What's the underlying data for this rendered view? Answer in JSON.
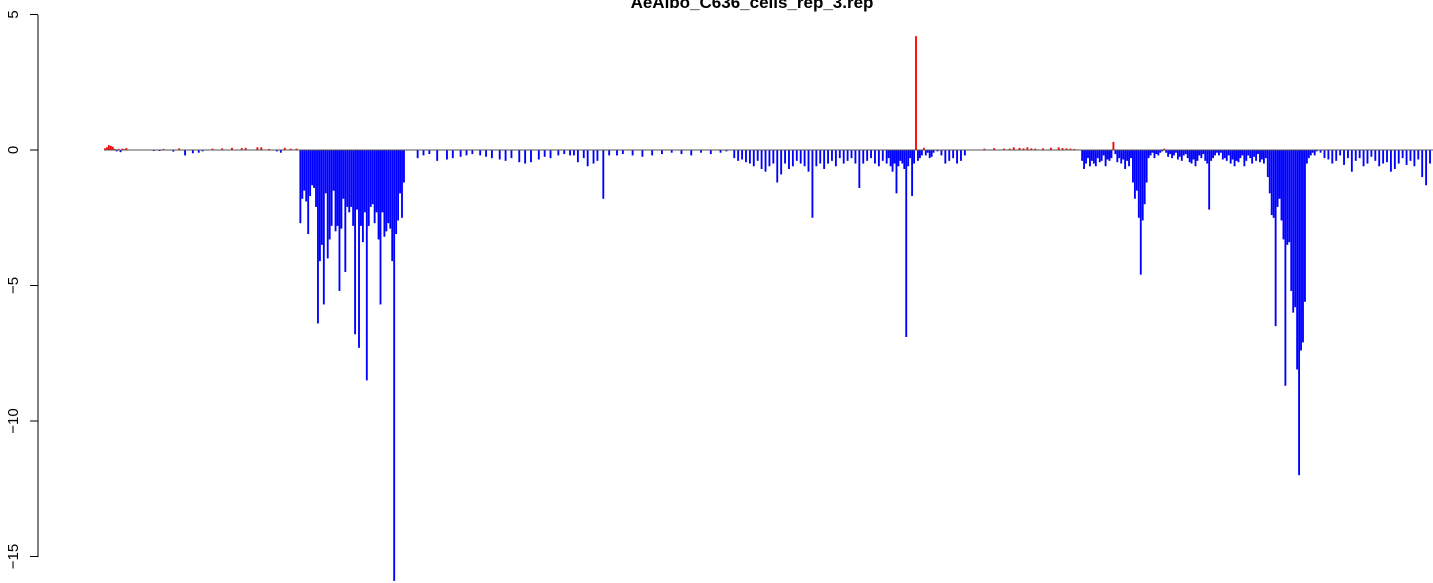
{
  "chart_data": {
    "type": "bar",
    "title": "AeAlbo_C636_cells_rep_3.rep",
    "xlabel": "",
    "ylabel": "",
    "ylim": [
      -16,
      5
    ],
    "yticks": [
      5,
      0,
      -5,
      -10,
      -15
    ],
    "ytick_labels": [
      "5",
      "0",
      "−5",
      "−10",
      "−15"
    ],
    "positive_color": "#ff0000",
    "negative_color": "#0000ff",
    "baseline_color": "#555555",
    "n_bins": 680,
    "bins": [
      [
        0,
        0.06
      ],
      [
        1,
        0.1
      ],
      [
        2,
        0.18
      ],
      [
        3,
        0.15
      ],
      [
        4,
        0.12
      ],
      [
        5,
        0.04
      ],
      [
        6,
        -0.05
      ],
      [
        7,
        0.04
      ],
      [
        8,
        -0.08
      ],
      [
        9,
        0.05
      ],
      [
        10,
        0.03
      ],
      [
        11,
        0.07
      ],
      [
        25,
        -0.02
      ],
      [
        28,
        -0.03
      ],
      [
        30,
        0.04
      ],
      [
        35,
        -0.06
      ],
      [
        38,
        0.06
      ],
      [
        41,
        -0.2
      ],
      [
        45,
        -0.12
      ],
      [
        48,
        -0.1
      ],
      [
        50,
        -0.05
      ],
      [
        55,
        0.05
      ],
      [
        60,
        0.06
      ],
      [
        65,
        0.08
      ],
      [
        70,
        0.07
      ],
      [
        72,
        0.08
      ],
      [
        78,
        0.1
      ],
      [
        80,
        0.1
      ],
      [
        84,
        0.04
      ],
      [
        88,
        -0.05
      ],
      [
        90,
        -0.1
      ],
      [
        92,
        0.08
      ],
      [
        95,
        0.05
      ],
      [
        98,
        0.05
      ],
      [
        100,
        -2.7
      ],
      [
        101,
        -1.8
      ],
      [
        102,
        -1.5
      ],
      [
        103,
        -1.9
      ],
      [
        104,
        -3.1
      ],
      [
        105,
        -1.7
      ],
      [
        106,
        -1.3
      ],
      [
        107,
        -1.4
      ],
      [
        108,
        -2.1
      ],
      [
        109,
        -6.4
      ],
      [
        110,
        -4.1
      ],
      [
        111,
        -3.5
      ],
      [
        112,
        -5.7
      ],
      [
        113,
        -1.6
      ],
      [
        114,
        -4.0
      ],
      [
        115,
        -3.3
      ],
      [
        116,
        -2.8
      ],
      [
        117,
        -1.5
      ],
      [
        118,
        -3.0
      ],
      [
        119,
        -2.8
      ],
      [
        120,
        -5.2
      ],
      [
        121,
        -2.9
      ],
      [
        122,
        -1.8
      ],
      [
        123,
        -4.5
      ],
      [
        124,
        -2.1
      ],
      [
        125,
        -2.3
      ],
      [
        126,
        -2.1
      ],
      [
        127,
        -2.8
      ],
      [
        128,
        -6.8
      ],
      [
        129,
        -2.2
      ],
      [
        130,
        -7.3
      ],
      [
        131,
        -2.8
      ],
      [
        132,
        -3.4
      ],
      [
        133,
        -2.3
      ],
      [
        134,
        -8.5
      ],
      [
        135,
        -2.8
      ],
      [
        136,
        -2.1
      ],
      [
        137,
        -2.0
      ],
      [
        138,
        -2.7
      ],
      [
        139,
        -2.3
      ],
      [
        140,
        -3.3
      ],
      [
        141,
        -5.7
      ],
      [
        142,
        -2.3
      ],
      [
        143,
        -3.2
      ],
      [
        144,
        -3.0
      ],
      [
        145,
        -2.7
      ],
      [
        146,
        -2.9
      ],
      [
        147,
        -4.1
      ],
      [
        148,
        -15.9
      ],
      [
        149,
        -3.1
      ],
      [
        150,
        -2.6
      ],
      [
        151,
        -1.6
      ],
      [
        152,
        -2.5
      ],
      [
        153,
        -1.2
      ],
      [
        160,
        -0.3
      ],
      [
        163,
        -0.2
      ],
      [
        166,
        -0.15
      ],
      [
        170,
        -0.4
      ],
      [
        175,
        -0.35
      ],
      [
        178,
        -0.3
      ],
      [
        182,
        -0.25
      ],
      [
        185,
        -0.2
      ],
      [
        188,
        -0.15
      ],
      [
        192,
        -0.2
      ],
      [
        195,
        -0.25
      ],
      [
        198,
        -0.3
      ],
      [
        202,
        -0.35
      ],
      [
        205,
        -0.4
      ],
      [
        208,
        -0.3
      ],
      [
        212,
        -0.45
      ],
      [
        215,
        -0.5
      ],
      [
        218,
        -0.45
      ],
      [
        222,
        -0.35
      ],
      [
        225,
        -0.25
      ],
      [
        228,
        -0.3
      ],
      [
        232,
        -0.2
      ],
      [
        235,
        -0.15
      ],
      [
        238,
        -0.2
      ],
      [
        240,
        -0.2
      ],
      [
        242,
        -0.45
      ],
      [
        245,
        -0.3
      ],
      [
        247,
        -0.6
      ],
      [
        250,
        -0.5
      ],
      [
        252,
        -0.4
      ],
      [
        255,
        -1.8
      ],
      [
        258,
        -0.2
      ],
      [
        262,
        -0.2
      ],
      [
        265,
        -0.15
      ],
      [
        270,
        -0.2
      ],
      [
        275,
        -0.25
      ],
      [
        280,
        -0.2
      ],
      [
        285,
        -0.15
      ],
      [
        290,
        -0.1
      ],
      [
        295,
        -0.15
      ],
      [
        300,
        -0.2
      ],
      [
        305,
        -0.1
      ],
      [
        310,
        -0.15
      ],
      [
        315,
        -0.1
      ],
      [
        318,
        -0.05
      ],
      [
        322,
        -0.3
      ],
      [
        324,
        -0.4
      ],
      [
        326,
        -0.35
      ],
      [
        328,
        -0.45
      ],
      [
        330,
        -0.5
      ],
      [
        332,
        -0.6
      ],
      [
        334,
        -0.4
      ],
      [
        336,
        -0.7
      ],
      [
        338,
        -0.8
      ],
      [
        340,
        -0.6
      ],
      [
        342,
        -0.5
      ],
      [
        344,
        -1.2
      ],
      [
        346,
        -0.9
      ],
      [
        348,
        -0.5
      ],
      [
        350,
        -0.7
      ],
      [
        352,
        -0.6
      ],
      [
        354,
        -0.4
      ],
      [
        356,
        -0.5
      ],
      [
        358,
        -0.6
      ],
      [
        360,
        -0.8
      ],
      [
        362,
        -2.5
      ],
      [
        364,
        -0.6
      ],
      [
        366,
        -0.5
      ],
      [
        368,
        -0.7
      ],
      [
        370,
        -0.5
      ],
      [
        372,
        -0.4
      ],
      [
        374,
        -0.6
      ],
      [
        376,
        -0.3
      ],
      [
        378,
        -0.5
      ],
      [
        380,
        -0.4
      ],
      [
        382,
        -0.3
      ],
      [
        384,
        -0.5
      ],
      [
        386,
        -1.4
      ],
      [
        388,
        -0.5
      ],
      [
        390,
        -0.4
      ],
      [
        392,
        -0.3
      ],
      [
        394,
        -0.5
      ],
      [
        396,
        -0.6
      ],
      [
        398,
        -0.4
      ],
      [
        400,
        -0.5
      ],
      [
        401,
        -0.3
      ],
      [
        402,
        -0.6
      ],
      [
        403,
        -0.8
      ],
      [
        404,
        -0.5
      ],
      [
        405,
        -1.6
      ],
      [
        406,
        -0.6
      ],
      [
        407,
        -0.4
      ],
      [
        408,
        -0.5
      ],
      [
        409,
        -0.7
      ],
      [
        410,
        -6.9
      ],
      [
        411,
        -0.6
      ],
      [
        412,
        -0.3
      ],
      [
        413,
        -1.7
      ],
      [
        414,
        -0.5
      ],
      [
        415,
        4.2
      ],
      [
        416,
        -0.4
      ],
      [
        417,
        -0.3
      ],
      [
        418,
        -0.2
      ],
      [
        419,
        0.08
      ],
      [
        420,
        -0.2
      ],
      [
        421,
        -0.1
      ],
      [
        422,
        -0.3
      ],
      [
        423,
        -0.25
      ],
      [
        424,
        -0.1
      ],
      [
        426,
        -0.05
      ],
      [
        428,
        -0.2
      ],
      [
        430,
        -0.5
      ],
      [
        432,
        -0.4
      ],
      [
        434,
        -0.3
      ],
      [
        436,
        -0.5
      ],
      [
        438,
        -0.4
      ],
      [
        440,
        -0.2
      ],
      [
        450,
        0.05
      ],
      [
        455,
        0.07
      ],
      [
        460,
        0.05
      ],
      [
        463,
        0.05
      ],
      [
        465,
        0.1
      ],
      [
        468,
        0.08
      ],
      [
        470,
        0.06
      ],
      [
        472,
        0.1
      ],
      [
        474,
        0.06
      ],
      [
        476,
        0.05
      ],
      [
        480,
        0.06
      ],
      [
        484,
        0.08
      ],
      [
        488,
        0.1
      ],
      [
        490,
        0.07
      ],
      [
        492,
        0.06
      ],
      [
        494,
        0.05
      ],
      [
        496,
        0.04
      ],
      [
        500,
        -0.4
      ],
      [
        501,
        -0.7
      ],
      [
        502,
        -0.5
      ],
      [
        503,
        -0.3
      ],
      [
        504,
        -0.6
      ],
      [
        505,
        -0.4
      ],
      [
        506,
        -0.5
      ],
      [
        507,
        -0.6
      ],
      [
        508,
        -0.3
      ],
      [
        509,
        -0.45
      ],
      [
        510,
        -0.4
      ],
      [
        511,
        -0.2
      ],
      [
        512,
        -0.6
      ],
      [
        513,
        -0.35
      ],
      [
        514,
        -0.4
      ],
      [
        515,
        -0.3
      ],
      [
        516,
        0.3
      ],
      [
        517,
        -0.15
      ],
      [
        518,
        -0.45
      ],
      [
        519,
        -0.3
      ],
      [
        520,
        -0.5
      ],
      [
        521,
        -0.35
      ],
      [
        522,
        -0.7
      ],
      [
        523,
        -0.4
      ],
      [
        524,
        -0.6
      ],
      [
        525,
        -0.3
      ],
      [
        526,
        -1.2
      ],
      [
        527,
        -1.8
      ],
      [
        528,
        -1.5
      ],
      [
        529,
        -2.5
      ],
      [
        530,
        -4.6
      ],
      [
        531,
        -2.6
      ],
      [
        532,
        -2.0
      ],
      [
        533,
        -1.2
      ],
      [
        534,
        -0.3
      ],
      [
        535,
        -0.2
      ],
      [
        536,
        -0.1
      ],
      [
        537,
        -0.3
      ],
      [
        538,
        -0.15
      ],
      [
        539,
        -0.2
      ],
      [
        540,
        -0.1
      ],
      [
        541,
        -0.05
      ],
      [
        542,
        0.05
      ],
      [
        543,
        -0.1
      ],
      [
        544,
        -0.25
      ],
      [
        545,
        -0.15
      ],
      [
        546,
        -0.3
      ],
      [
        547,
        -0.2
      ],
      [
        548,
        -0.1
      ],
      [
        549,
        -0.35
      ],
      [
        550,
        -0.25
      ],
      [
        551,
        -0.4
      ],
      [
        552,
        -0.2
      ],
      [
        553,
        -0.15
      ],
      [
        554,
        -0.3
      ],
      [
        555,
        -0.45
      ],
      [
        556,
        -0.5
      ],
      [
        557,
        -0.35
      ],
      [
        558,
        -0.6
      ],
      [
        559,
        -0.4
      ],
      [
        560,
        -0.2
      ],
      [
        561,
        -0.3
      ],
      [
        562,
        -0.15
      ],
      [
        563,
        -0.4
      ],
      [
        564,
        -0.5
      ],
      [
        565,
        -2.2
      ],
      [
        566,
        -0.4
      ],
      [
        567,
        -0.3
      ],
      [
        568,
        -0.2
      ],
      [
        569,
        -0.1
      ],
      [
        570,
        -0.2
      ],
      [
        571,
        -0.1
      ],
      [
        572,
        -0.35
      ],
      [
        573,
        -0.3
      ],
      [
        574,
        -0.4
      ],
      [
        575,
        -0.2
      ],
      [
        576,
        -0.5
      ],
      [
        577,
        -0.35
      ],
      [
        578,
        -0.6
      ],
      [
        579,
        -0.4
      ],
      [
        580,
        -0.45
      ],
      [
        581,
        -0.3
      ],
      [
        582,
        -0.2
      ],
      [
        583,
        -0.6
      ],
      [
        584,
        -0.4
      ],
      [
        585,
        -0.2
      ],
      [
        586,
        -0.3
      ],
      [
        587,
        -0.5
      ],
      [
        588,
        -0.25
      ],
      [
        589,
        -0.4
      ],
      [
        590,
        -0.15
      ],
      [
        591,
        -0.45
      ],
      [
        592,
        -0.35
      ],
      [
        593,
        -0.5
      ],
      [
        594,
        -0.3
      ],
      [
        595,
        -1.0
      ],
      [
        596,
        -1.6
      ],
      [
        597,
        -2.4
      ],
      [
        598,
        -2.5
      ],
      [
        599,
        -6.5
      ],
      [
        600,
        -2.1
      ],
      [
        601,
        -1.8
      ],
      [
        602,
        -2.6
      ],
      [
        603,
        -3.3
      ],
      [
        604,
        -8.7
      ],
      [
        605,
        -3.5
      ],
      [
        606,
        -3.4
      ],
      [
        607,
        -5.2
      ],
      [
        608,
        -6.0
      ],
      [
        609,
        -5.8
      ],
      [
        610,
        -8.1
      ],
      [
        611,
        -12.0
      ],
      [
        612,
        -7.4
      ],
      [
        613,
        -7.1
      ],
      [
        614,
        -5.6
      ],
      [
        615,
        -0.5
      ],
      [
        616,
        -0.3
      ],
      [
        617,
        -0.2
      ],
      [
        618,
        -0.1
      ],
      [
        619,
        -0.2
      ],
      [
        620,
        -0.05
      ],
      [
        622,
        -0.1
      ],
      [
        624,
        -0.3
      ],
      [
        626,
        -0.35
      ],
      [
        628,
        -0.5
      ],
      [
        630,
        -0.4
      ],
      [
        632,
        -0.2
      ],
      [
        634,
        -0.55
      ],
      [
        636,
        -0.3
      ],
      [
        638,
        -0.8
      ],
      [
        640,
        -0.4
      ],
      [
        642,
        -0.3
      ],
      [
        644,
        -0.6
      ],
      [
        646,
        -0.5
      ],
      [
        648,
        -0.25
      ],
      [
        650,
        -0.4
      ],
      [
        652,
        -0.6
      ],
      [
        654,
        -0.5
      ],
      [
        656,
        -0.45
      ],
      [
        658,
        -0.8
      ],
      [
        660,
        -0.7
      ],
      [
        662,
        -0.5
      ],
      [
        664,
        -0.3
      ],
      [
        666,
        -0.55
      ],
      [
        668,
        -0.4
      ],
      [
        670,
        -0.6
      ],
      [
        672,
        -0.35
      ],
      [
        674,
        -1.0
      ],
      [
        676,
        -1.3
      ],
      [
        678,
        -0.5
      ]
    ]
  }
}
